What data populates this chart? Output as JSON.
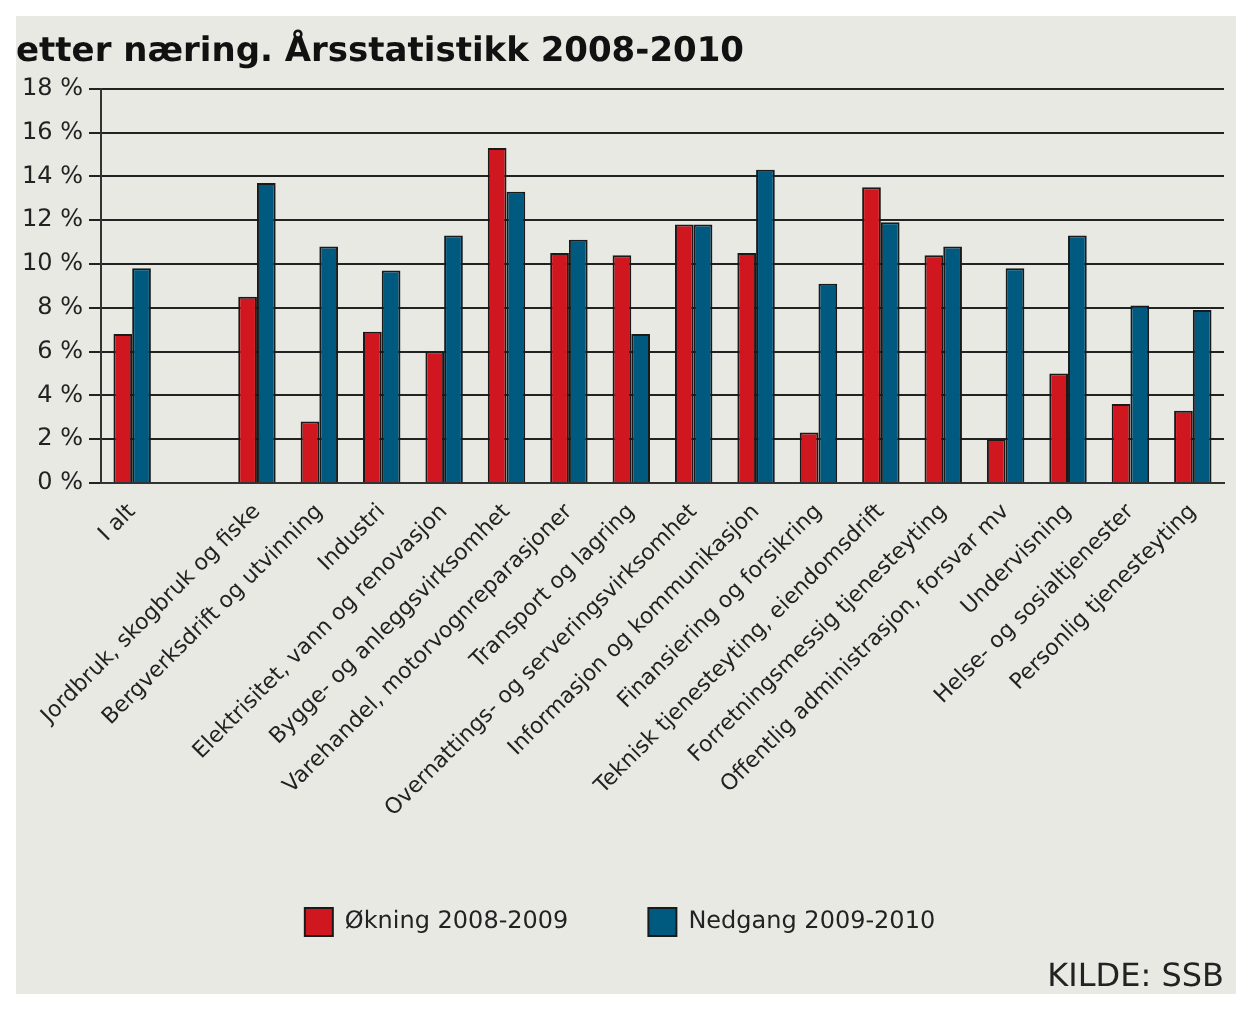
{
  "chart_data": {
    "type": "bar",
    "title": "etter næring. Årsstatistikk 2008-2010",
    "categories": [
      "I alt",
      null,
      "Jordbruk, skogbruk og fiske",
      "Bergverksdrift og utvinning",
      "Industri",
      "Elektrisitet, vann og renovasjon",
      "Bygge- og anleggsvirksomhet",
      "Varehandel, motorvognreparasjoner",
      "Transport og lagring",
      "Overnattings- og serveringsvirksomhet",
      "Informasjon og kommunikasjon",
      "Finansiering og forsikring",
      "Teknisk tjenesteyting, eiendomsdrift",
      "Forretningsmessig tjenesteyting",
      "Offentlig administrasjon, forsvar mv",
      "Undervisning",
      "Helse- og sosialtjenester",
      "Personlig tjenesteyting"
    ],
    "series": [
      {
        "name": "Økning 2008-2009",
        "color": "#d0161f",
        "values": [
          6.8,
          null,
          8.5,
          2.8,
          6.9,
          6.0,
          15.3,
          10.5,
          10.4,
          11.8,
          10.5,
          2.3,
          13.5,
          10.4,
          2.0,
          5.0,
          3.6,
          3.3
        ]
      },
      {
        "name": "Nedgang 2009-2010",
        "color": "#005a80",
        "values": [
          9.8,
          null,
          13.7,
          10.8,
          9.7,
          11.3,
          13.3,
          11.1,
          6.8,
          11.8,
          14.3,
          9.1,
          11.9,
          10.8,
          9.8,
          11.3,
          8.1,
          7.9
        ]
      }
    ],
    "ylim": [
      0,
      18
    ],
    "yticks": [
      {
        "value": 0,
        "label": "0 %"
      },
      {
        "value": 2,
        "label": "2 %"
      },
      {
        "value": 4,
        "label": "4 %"
      },
      {
        "value": 6,
        "label": "6 %"
      },
      {
        "value": 8,
        "label": "8 %"
      },
      {
        "value": 10,
        "label": "10 %"
      },
      {
        "value": 12,
        "label": "12 %"
      },
      {
        "value": 14,
        "label": "14 %"
      },
      {
        "value": 16,
        "label": "16 %"
      },
      {
        "value": 18,
        "label": "18 %"
      }
    ],
    "grid": "y",
    "legend": "bottom",
    "annotations": [
      "KILDE: SSB"
    ]
  }
}
